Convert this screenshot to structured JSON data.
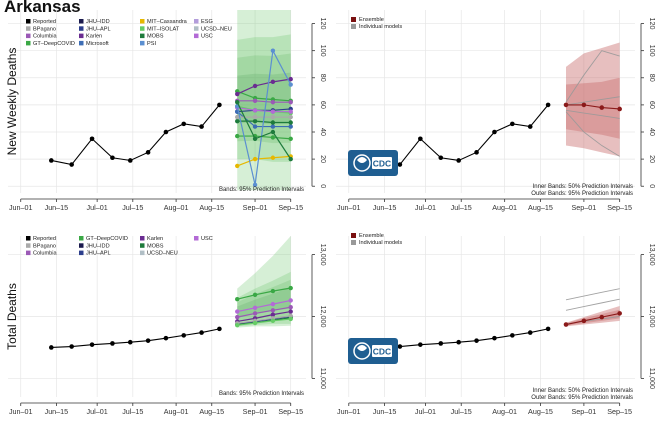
{
  "title": "Arkansas",
  "colors": {
    "reported": "#000000",
    "ensemble": "#8b1a1a",
    "ensemble_band": "#c97070",
    "individual_models": "#999999",
    "ensemble_icon": "#7a1010",
    "cdc_blue": "#1f5e91"
  },
  "chart_data": [
    {
      "id": "weekly_individual",
      "type": "line",
      "ylabel": "New Weekly Deaths",
      "x_ticks": [
        "Jun–01",
        "Jun–15",
        "Jul–01",
        "Jul–15",
        "Aug–01",
        "Aug–15",
        "Sep–01",
        "Sep–15"
      ],
      "x_tick_days": [
        0,
        14,
        30,
        44,
        61,
        75,
        92,
        106
      ],
      "y_ticks": [
        0,
        20,
        40,
        60,
        80,
        100,
        120
      ],
      "ylim": [
        -5,
        130
      ],
      "xlim": [
        -5,
        112
      ],
      "y_axis_side": "right",
      "legend": [
        "Reported",
        "BPagano",
        "Columbia",
        "GT–DeepCOVID",
        "JHU–IDD",
        "JHU–APL",
        "Karlen",
        "Microsoft",
        "MIT–Cassandra",
        "MIT–ISOLAT",
        "MOBS",
        "PSI",
        "ESG",
        "UCSD–NEU",
        "USC"
      ],
      "legend_colors": [
        "#000000",
        "#aaaaaa",
        "#9b59b6",
        "#3aa845",
        "#1a1a4d",
        "#2c3e8c",
        "#6a2c91",
        "#3d6db5",
        "#e6b800",
        "#66cc66",
        "#1e7b3c",
        "#5b8fd1",
        "#b39ddb",
        "#b0bec5",
        "#b36ad6"
      ],
      "series": [
        {
          "name": "Reported",
          "days": [
            12,
            20,
            28,
            36,
            43,
            50,
            57,
            64,
            71,
            78
          ],
          "values": [
            19,
            16,
            35,
            21,
            19,
            25,
            40,
            46,
            44,
            60
          ]
        }
      ],
      "forecast_days": [
        85,
        92,
        99,
        106
      ],
      "forecast_series": [
        {
          "color": "#3aa845",
          "values": [
            70,
            65,
            64,
            63
          ]
        },
        {
          "color": "#9b59b6",
          "values": [
            63,
            63,
            62,
            62
          ]
        },
        {
          "color": "#6a2c91",
          "values": [
            68,
            74,
            77,
            79
          ]
        },
        {
          "color": "#2c3e8c",
          "values": [
            55,
            56,
            56,
            57
          ]
        },
        {
          "color": "#3d6db5",
          "values": [
            55,
            44,
            44,
            44
          ]
        },
        {
          "color": "#1e7b3c",
          "values": [
            48,
            48,
            47,
            47
          ]
        },
        {
          "color": "#66cc66",
          "values": [
            59,
            56,
            55,
            54
          ]
        },
        {
          "color": "#b36ad6",
          "values": [
            58,
            56,
            55,
            55
          ]
        },
        {
          "color": "#aaaaaa",
          "values": [
            51,
            51,
            51,
            51
          ]
        },
        {
          "color": "#e6b800",
          "values": [
            15,
            20,
            21,
            22
          ]
        },
        {
          "color": "#3aa845",
          "values": [
            37,
            37,
            36,
            35
          ]
        },
        {
          "color": "#5b8fd1",
          "values": [
            59,
            1,
            100,
            75
          ]
        },
        {
          "color": "#1e7b3c",
          "values": [
            62,
            35,
            40,
            20
          ]
        }
      ],
      "band_outer": {
        "lo": [
          -3,
          -3,
          -3,
          -3
        ],
        "hi": [
          130,
          130,
          130,
          130
        ]
      },
      "band_inner": {
        "lo": [
          20,
          20,
          18,
          18
        ],
        "hi": [
          108,
          110,
          110,
          112
        ]
      },
      "annotation": "Bands: 95% Prediction Intervals"
    },
    {
      "id": "weekly_ensemble",
      "type": "line",
      "x_ticks": [
        "Jun–01",
        "Jun–15",
        "Jul–01",
        "Jul–15",
        "Aug–01",
        "Aug–15",
        "Sep–01",
        "Sep–15"
      ],
      "x_tick_days": [
        0,
        14,
        30,
        44,
        61,
        75,
        92,
        106
      ],
      "y_ticks": [
        0,
        20,
        40,
        60,
        80,
        100,
        120
      ],
      "ylim": [
        -5,
        130
      ],
      "xlim": [
        -5,
        112
      ],
      "y_axis_side": "right",
      "legend": [
        "Ensemble",
        "Individual models"
      ],
      "series": [
        {
          "name": "Reported",
          "days": [
            12,
            20,
            28,
            36,
            43,
            50,
            57,
            64,
            71,
            78
          ],
          "values": [
            19,
            16,
            35,
            21,
            19,
            25,
            40,
            46,
            44,
            60
          ]
        },
        {
          "name": "Ensemble",
          "days": [
            85,
            92,
            99,
            106
          ],
          "values": [
            60,
            60,
            58,
            57
          ]
        }
      ],
      "band_outer": {
        "lo": [
          30,
          28,
          25,
          22
        ],
        "hi": [
          88,
          98,
          102,
          106
        ]
      },
      "band_inner": {
        "lo": [
          42,
          40,
          38,
          35
        ],
        "hi": [
          75,
          76,
          77,
          80
        ]
      },
      "individual_lines": [
        {
          "values": [
            62,
            82,
            100,
            96
          ]
        },
        {
          "values": [
            55,
            40,
            30,
            22
          ]
        },
        {
          "values": [
            60,
            62,
            64,
            66
          ]
        },
        {
          "values": [
            56,
            54,
            52,
            50
          ]
        }
      ],
      "annotation": [
        "Inner Bands: 50% Prediction Intervals",
        "Outer Bands: 95% Prediction Intervals"
      ]
    },
    {
      "id": "total_individual",
      "type": "line",
      "ylabel": "Total Deaths",
      "x_ticks": [
        "Jun–01",
        "Jun–15",
        "Jul–01",
        "Jul–15",
        "Aug–01",
        "Aug–15",
        "Sep–01",
        "Sep–15"
      ],
      "x_tick_days": [
        0,
        14,
        30,
        44,
        61,
        75,
        92,
        106
      ],
      "y_ticks": [
        11000,
        12000,
        13000
      ],
      "ylim": [
        10700,
        13300
      ],
      "xlim": [
        -5,
        112
      ],
      "y_axis_side": "right",
      "legend": [
        "Reported",
        "BPagano",
        "Columbia",
        "GT–DeepCOVID",
        "JHU–IDD",
        "JHU–APL",
        "Karlen",
        "MOBS",
        "UCSD–NEU",
        "USC"
      ],
      "legend_colors": [
        "#000000",
        "#aaaaaa",
        "#9b59b6",
        "#3aa845",
        "#1a1a4d",
        "#2c3e8c",
        "#6a2c91",
        "#1e7b3c",
        "#b0bec5",
        "#b36ad6"
      ],
      "series": [
        {
          "name": "Reported",
          "days": [
            12,
            20,
            28,
            36,
            43,
            50,
            57,
            64,
            71,
            78
          ],
          "values": [
            11500,
            11515,
            11545,
            11565,
            11585,
            11610,
            11650,
            11695,
            11740,
            11800
          ]
        }
      ],
      "forecast_days": [
        85,
        92,
        99,
        106
      ],
      "forecast_series": [
        {
          "color": "#3aa845",
          "values": [
            12280,
            12350,
            12410,
            12460
          ]
        },
        {
          "color": "#b36ad6",
          "values": [
            12080,
            12140,
            12200,
            12260
          ]
        },
        {
          "color": "#9b59b6",
          "values": [
            11990,
            12050,
            12100,
            12150
          ]
        },
        {
          "color": "#6a2c91",
          "values": [
            11920,
            11970,
            12030,
            12080
          ]
        },
        {
          "color": "#2c3e8c",
          "values": [
            11880,
            11920,
            11960,
            12000
          ]
        },
        {
          "color": "#1e7b3c",
          "values": [
            11870,
            11900,
            11940,
            11980
          ]
        },
        {
          "color": "#aaaaaa",
          "values": [
            11890,
            11930,
            11970,
            12010
          ]
        },
        {
          "color": "#66cc66",
          "values": [
            11860,
            11895,
            11930,
            11960
          ]
        }
      ],
      "band_outer": {
        "lo": [
          11820,
          11840,
          11840,
          11850
        ],
        "hi": [
          12450,
          12700,
          12980,
          13300
        ]
      },
      "band_inner": {
        "lo": [
          11840,
          11860,
          11880,
          11880
        ],
        "hi": [
          12300,
          12450,
          12580,
          12720
        ]
      },
      "annotation": "Bands: 95% Prediction Intervals"
    },
    {
      "id": "total_ensemble",
      "type": "line",
      "x_ticks": [
        "Jun–01",
        "Jun–15",
        "Jul–01",
        "Jul–15",
        "Aug–01",
        "Aug–15",
        "Sep–01",
        "Sep–15"
      ],
      "x_tick_days": [
        0,
        14,
        30,
        44,
        61,
        75,
        92,
        106
      ],
      "y_ticks": [
        11000,
        12000,
        13000
      ],
      "ylim": [
        10700,
        13300
      ],
      "xlim": [
        -5,
        112
      ],
      "y_axis_side": "right",
      "legend": [
        "Ensemble",
        "Individual models"
      ],
      "series": [
        {
          "name": "Reported",
          "days": [
            12,
            20,
            28,
            36,
            43,
            50,
            57,
            64,
            71,
            78
          ],
          "values": [
            11500,
            11515,
            11545,
            11565,
            11585,
            11610,
            11650,
            11695,
            11740,
            11800
          ]
        },
        {
          "name": "Ensemble",
          "days": [
            85,
            92,
            99,
            106
          ],
          "values": [
            11870,
            11930,
            11990,
            12050
          ]
        }
      ],
      "band_outer": {
        "lo": [
          11840,
          11870,
          11900,
          11930
        ],
        "hi": [
          11900,
          11990,
          12080,
          12170
        ]
      },
      "band_inner": {
        "lo": [
          11850,
          11890,
          11930,
          11970
        ],
        "hi": [
          11890,
          11970,
          12040,
          12110
        ]
      },
      "individual_lines": [
        {
          "values": [
            12270,
            12330,
            12390,
            12450
          ]
        },
        {
          "values": [
            12100,
            12160,
            12220,
            12280
          ]
        },
        {
          "values": [
            11880,
            11920,
            11960,
            12000
          ]
        }
      ],
      "annotation": [
        "Inner Bands: 50% Prediction Intervals",
        "Outer Bands: 95% Prediction Intervals"
      ]
    }
  ],
  "cdc_logo": "CDC"
}
